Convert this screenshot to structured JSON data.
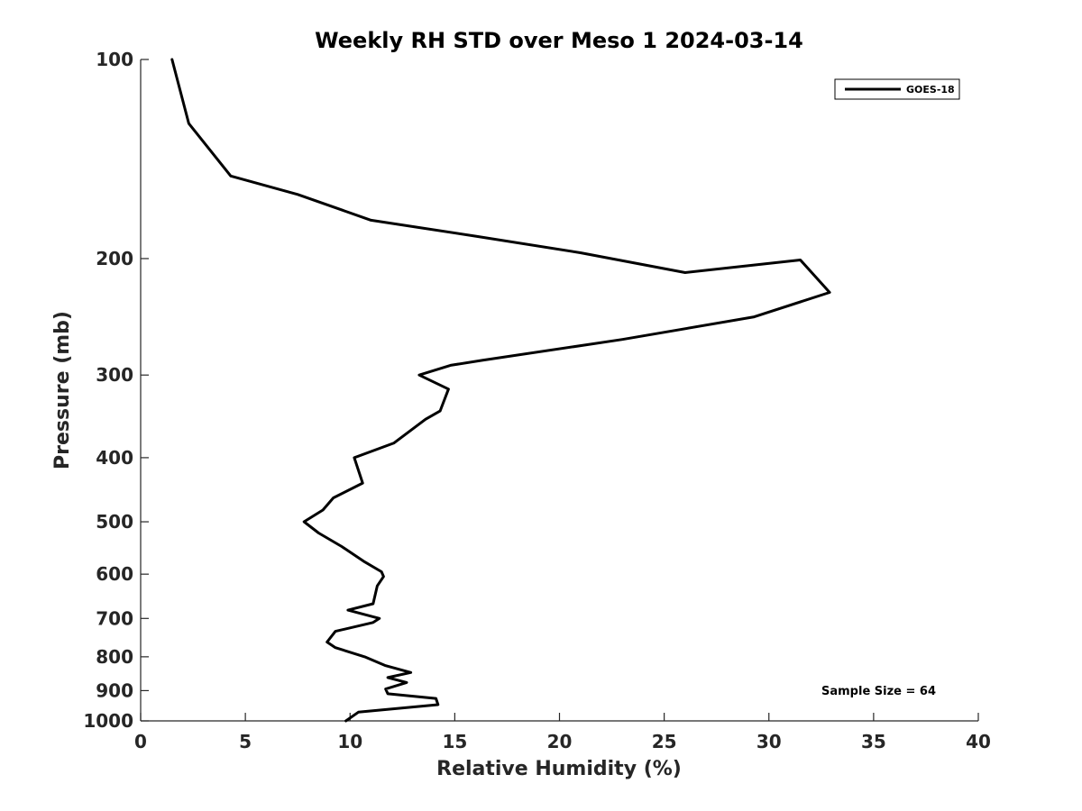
{
  "chart_data": {
    "type": "line",
    "title": "Weekly RH STD over Meso 1 2024-03-14",
    "xlabel": "Relative Humidity (%)",
    "ylabel": "Pressure (mb)",
    "xlim": [
      0,
      40
    ],
    "ylim": [
      100,
      1000
    ],
    "y_scale": "log",
    "y_direction": "reversed",
    "x_ticks": [
      "0",
      "5",
      "10",
      "15",
      "20",
      "25",
      "30",
      "35",
      "40"
    ],
    "y_ticks": [
      "100",
      "200",
      "300",
      "400",
      "500",
      "600",
      "700",
      "800",
      "900",
      "1000"
    ],
    "grid": false,
    "legend_position": "top-right",
    "series": [
      {
        "name": "GOES-18",
        "color": "#000000",
        "points": [
          [
            1.5,
            100
          ],
          [
            2.3,
            125
          ],
          [
            4.3,
            150
          ],
          [
            7.5,
            160
          ],
          [
            11,
            175
          ],
          [
            16,
            185
          ],
          [
            21,
            196
          ],
          [
            26,
            210
          ],
          [
            31.5,
            201
          ],
          [
            32.9,
            225
          ],
          [
            29.3,
            245
          ],
          [
            23,
            265
          ],
          [
            16.3,
            285
          ],
          [
            14.8,
            290
          ],
          [
            13.3,
            300
          ],
          [
            14.7,
            315
          ],
          [
            14.3,
            340
          ],
          [
            13.6,
            350
          ],
          [
            12.1,
            380
          ],
          [
            10.2,
            400
          ],
          [
            10.6,
            437
          ],
          [
            9.2,
            460
          ],
          [
            8.7,
            480
          ],
          [
            7.8,
            500
          ],
          [
            8.5,
            520
          ],
          [
            9.6,
            545
          ],
          [
            10.7,
            575
          ],
          [
            11.5,
            595
          ],
          [
            11.6,
            605
          ],
          [
            11.3,
            625
          ],
          [
            11.1,
            665
          ],
          [
            9.9,
            680
          ],
          [
            11.4,
            700
          ],
          [
            11.1,
            710
          ],
          [
            9.3,
            732
          ],
          [
            8.9,
            760
          ],
          [
            9.3,
            775
          ],
          [
            10.7,
            800
          ],
          [
            11.7,
            825
          ],
          [
            12.9,
            845
          ],
          [
            11.8,
            860
          ],
          [
            12.7,
            875
          ],
          [
            11.7,
            895
          ],
          [
            11.8,
            910
          ],
          [
            14.1,
            925
          ],
          [
            14.2,
            945
          ],
          [
            10.4,
            970
          ],
          [
            9.8,
            1000
          ]
        ]
      }
    ],
    "annotations": [
      "Sample Size = 64"
    ]
  }
}
